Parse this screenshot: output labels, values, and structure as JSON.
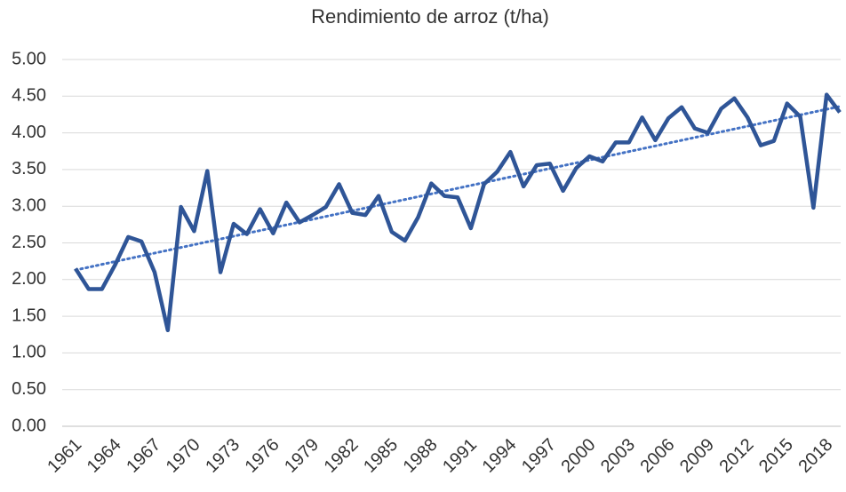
{
  "chart_data": {
    "type": "line",
    "title": "Rendimiento de arroz (t/ha)",
    "categories": [
      "1961",
      null,
      null,
      "1964",
      null,
      null,
      "1967",
      null,
      null,
      "1970",
      null,
      null,
      "1973",
      null,
      null,
      "1976",
      null,
      null,
      "1979",
      null,
      null,
      "1982",
      null,
      null,
      "1985",
      null,
      null,
      "1988",
      null,
      null,
      "1991",
      null,
      null,
      "1994",
      null,
      null,
      "1997",
      null,
      null,
      "2000",
      null,
      null,
      "2003",
      null,
      null,
      "2006",
      null,
      null,
      "2009",
      null,
      null,
      "2012",
      null,
      null,
      "2015",
      null,
      null,
      "2018",
      null
    ],
    "series": [
      {
        "name": "Rendimiento",
        "color": "#2f5597",
        "values": [
          2.15,
          1.87,
          1.87,
          2.2,
          2.58,
          2.52,
          2.1,
          1.31,
          2.99,
          2.66,
          3.48,
          2.1,
          2.76,
          2.62,
          2.96,
          2.63,
          3.05,
          2.78,
          2.88,
          2.99,
          3.3,
          2.91,
          2.88,
          3.14,
          2.65,
          2.53,
          2.85,
          3.31,
          3.14,
          3.12,
          2.7,
          3.3,
          3.47,
          3.74,
          3.27,
          3.56,
          3.58,
          3.21,
          3.52,
          3.68,
          3.61,
          3.87,
          3.87,
          4.21,
          3.9,
          4.2,
          4.35,
          4.06,
          4.0,
          4.33,
          4.47,
          4.21,
          3.83,
          3.89,
          4.4,
          4.22,
          2.98,
          4.52,
          4.28
        ]
      }
    ],
    "trendline": {
      "start": 2.13,
      "end": 4.36,
      "color": "#4472c4"
    },
    "ylim": [
      0,
      5
    ],
    "yticks": [
      {
        "value": 0,
        "label": "0.00"
      },
      {
        "value": 0.5,
        "label": "0.50"
      },
      {
        "value": 1,
        "label": "1.00"
      },
      {
        "value": 1.5,
        "label": "1.50"
      },
      {
        "value": 2,
        "label": "2.00"
      },
      {
        "value": 2.5,
        "label": "2.50"
      },
      {
        "value": 3,
        "label": "3.00"
      },
      {
        "value": 3.5,
        "label": "3.50"
      },
      {
        "value": 4,
        "label": "4.00"
      },
      {
        "value": 4.5,
        "label": "4.50"
      },
      {
        "value": 5,
        "label": "5.00"
      }
    ],
    "grid": true
  }
}
